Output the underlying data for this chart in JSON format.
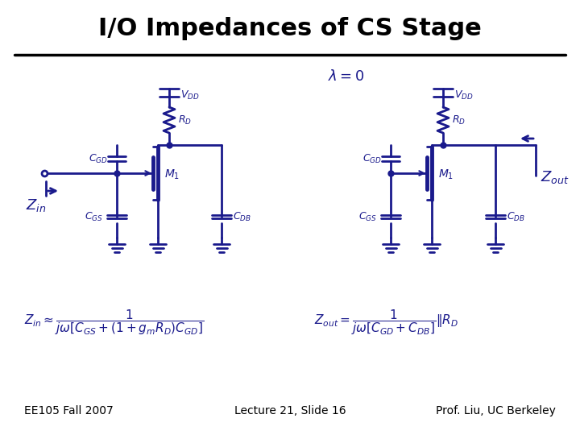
{
  "title": "I/O Impedances of CS Stage",
  "title_fontsize": 22,
  "title_color": "#000000",
  "background_color": "#ffffff",
  "circuit_color": "#1a1a8c",
  "footer_left": "EE105 Fall 2007",
  "footer_center": "Lecture 21, Slide 16",
  "footer_right": "Prof. Liu, UC Berkeley",
  "footer_fontsize": 10,
  "lambda_text": "$\\lambda = 0$",
  "fig_width": 7.2,
  "fig_height": 5.4,
  "dpi": 100
}
